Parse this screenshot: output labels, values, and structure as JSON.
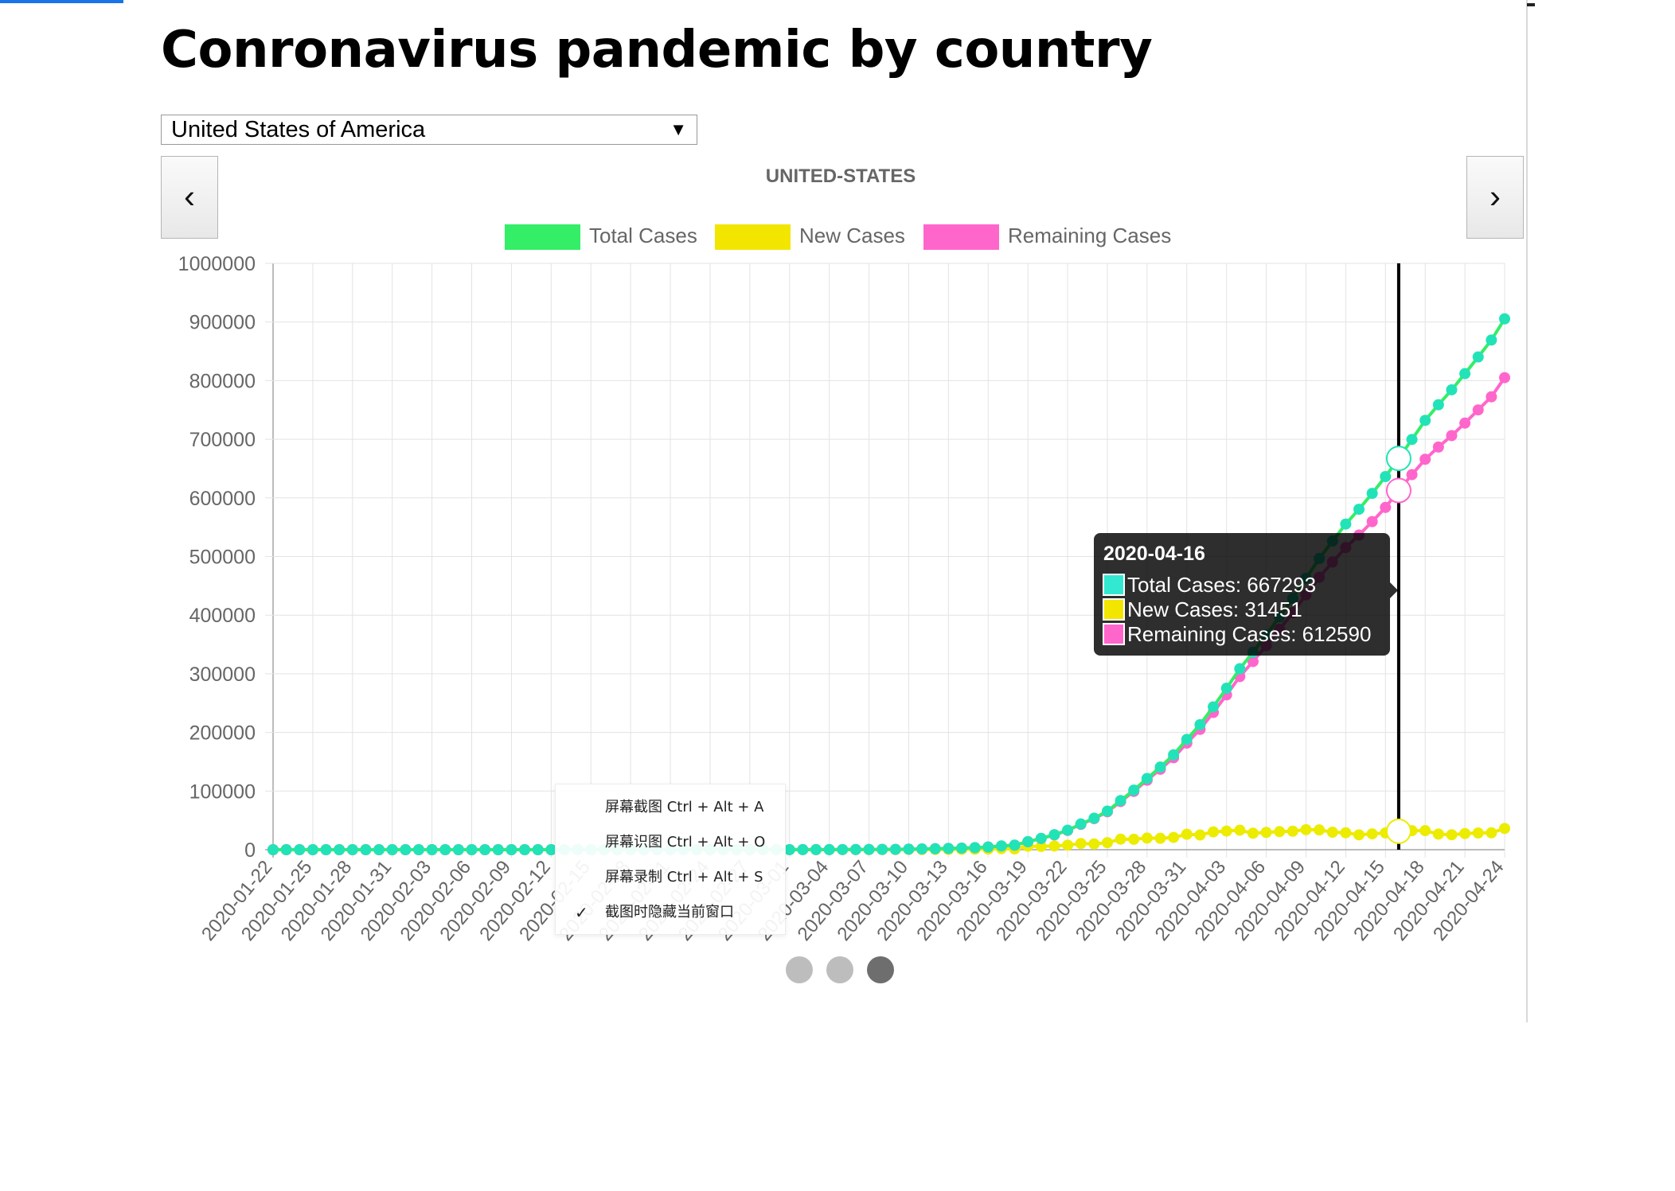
{
  "page": {
    "title": "Conronavirus pandemic by country"
  },
  "country_select": {
    "value": "United States of America",
    "caret": "▼"
  },
  "nav": {
    "prev_label": "‹",
    "next_label": "›",
    "prev_icon": "chevron-left-icon",
    "next_icon": "chevron-right-icon"
  },
  "carousel": {
    "dots": 3,
    "active_index": 2
  },
  "context_menu": {
    "items": [
      {
        "label": "屏幕截图 Ctrl + Alt + A",
        "checked": false
      },
      {
        "label": "屏幕识图 Ctrl + Alt + O",
        "checked": false
      },
      {
        "label": "屏幕录制 Ctrl + Alt + S",
        "checked": false
      },
      {
        "label": "截图时隐藏当前窗口",
        "checked": true
      }
    ],
    "check_mark": "✓"
  },
  "chart_data": {
    "type": "line",
    "title": "UNITED-STATES",
    "xlabel": "",
    "ylabel": "",
    "ylim": [
      0,
      1000000
    ],
    "yticks": [
      0,
      100000,
      200000,
      300000,
      400000,
      500000,
      600000,
      700000,
      800000,
      900000,
      1000000
    ],
    "grid": true,
    "legend_position": "top",
    "x_start": "2020-01-22",
    "x_end": "2020-04-24",
    "x_tick_labels": [
      "2020-01-22",
      "2020-01-25",
      "2020-01-28",
      "2020-01-31",
      "2020-02-03",
      "2020-02-06",
      "2020-02-09",
      "2020-02-12",
      "2020-02-15",
      "2020-02-18",
      "2020-02-21",
      "2020-02-24",
      "2020-02-27",
      "2020-03-01",
      "2020-03-04",
      "2020-03-07",
      "2020-03-10",
      "2020-03-13",
      "2020-03-16",
      "2020-03-19",
      "2020-03-22",
      "2020-03-25",
      "2020-03-28",
      "2020-03-31",
      "2020-04-03",
      "2020-04-06",
      "2020-04-09",
      "2020-04-12",
      "2020-04-15",
      "2020-04-18",
      "2020-04-21",
      "2020-04-24"
    ],
    "series": [
      {
        "name": "Total Cases",
        "color": "#33ee66",
        "point_color": "#22e3b8",
        "values": [
          1,
          1,
          2,
          2,
          5,
          5,
          5,
          5,
          5,
          7,
          8,
          8,
          11,
          11,
          11,
          11,
          11,
          11,
          11,
          11,
          12,
          12,
          13,
          13,
          13,
          13,
          13,
          13,
          13,
          13,
          15,
          15,
          15,
          51,
          51,
          57,
          58,
          60,
          68,
          74,
          98,
          118,
          149,
          217,
          262,
          402,
          518,
          583,
          959,
          1281,
          1663,
          2179,
          2727,
          3499,
          4632,
          6421,
          7783,
          13747,
          19273,
          25600,
          33276,
          43847,
          53740,
          65778,
          83836,
          101657,
          121465,
          140909,
          161831,
          188172,
          213242,
          243622,
          275367,
          308650,
          336802,
          366317,
          397121,
          428654,
          462780,
          496535,
          526396,
          555313,
          580619,
          607670,
          636350,
          667293,
          699706,
          732197,
          758809,
          784326,
          811865,
          840351,
          869170,
          905358
        ]
      },
      {
        "name": "New Cases",
        "color": "#f2e600",
        "point_color": "#ecec00",
        "values": [
          0,
          0,
          1,
          0,
          3,
          0,
          0,
          0,
          0,
          2,
          1,
          0,
          3,
          0,
          0,
          0,
          0,
          0,
          0,
          0,
          1,
          0,
          1,
          0,
          0,
          0,
          0,
          0,
          0,
          0,
          2,
          0,
          0,
          36,
          0,
          6,
          1,
          2,
          8,
          6,
          24,
          20,
          31,
          68,
          45,
          140,
          116,
          65,
          376,
          322,
          382,
          516,
          548,
          772,
          1133,
          1789,
          1362,
          5964,
          5526,
          6327,
          7676,
          10571,
          9893,
          12038,
          18058,
          17821,
          19808,
          19444,
          20922,
          26341,
          25070,
          30380,
          31745,
          33283,
          28152,
          29515,
          30804,
          31533,
          34126,
          33755,
          29861,
          28917,
          25306,
          27051,
          28680,
          31451,
          32413,
          32491,
          26612,
          25517,
          27539,
          28486,
          28819,
          36188
        ]
      },
      {
        "name": "Remaining Cases",
        "color": "#ff66cc",
        "point_color": "#ff66cc",
        "values": [
          1,
          1,
          2,
          2,
          5,
          5,
          5,
          5,
          5,
          7,
          8,
          8,
          11,
          11,
          11,
          11,
          11,
          11,
          8,
          8,
          9,
          9,
          10,
          10,
          10,
          10,
          10,
          10,
          10,
          10,
          12,
          12,
          12,
          48,
          48,
          54,
          55,
          57,
          64,
          67,
          89,
          107,
          137,
          205,
          249,
          384,
          497,
          556,
          925,
          1238,
          1618,
          2128,
          2663,
          3427,
          4555,
          6321,
          7646,
          13561,
          19027,
          25258,
          32815,
          43239,
          52950,
          64641,
          82142,
          99424,
          118526,
          137169,
          156872,
          181773,
          205203,
          234041,
          264060,
          295213,
          320928,
          347900,
          375881,
          404133,
          434707,
          464611,
          490668,
          515212,
          536588,
          559526,
          583744,
          612590,
          639663,
          665863,
          686745,
          706227,
          727592,
          750017,
          772393,
          805037
        ]
      }
    ],
    "tooltip": {
      "date": "2020-04-16",
      "lines": [
        {
          "label": "Total Cases: 667293",
          "color": "#33e8d0"
        },
        {
          "label": "New Cases: 31451",
          "color": "#f2e600"
        },
        {
          "label": "Remaining Cases: 612590",
          "color": "#ff66cc"
        }
      ]
    }
  }
}
